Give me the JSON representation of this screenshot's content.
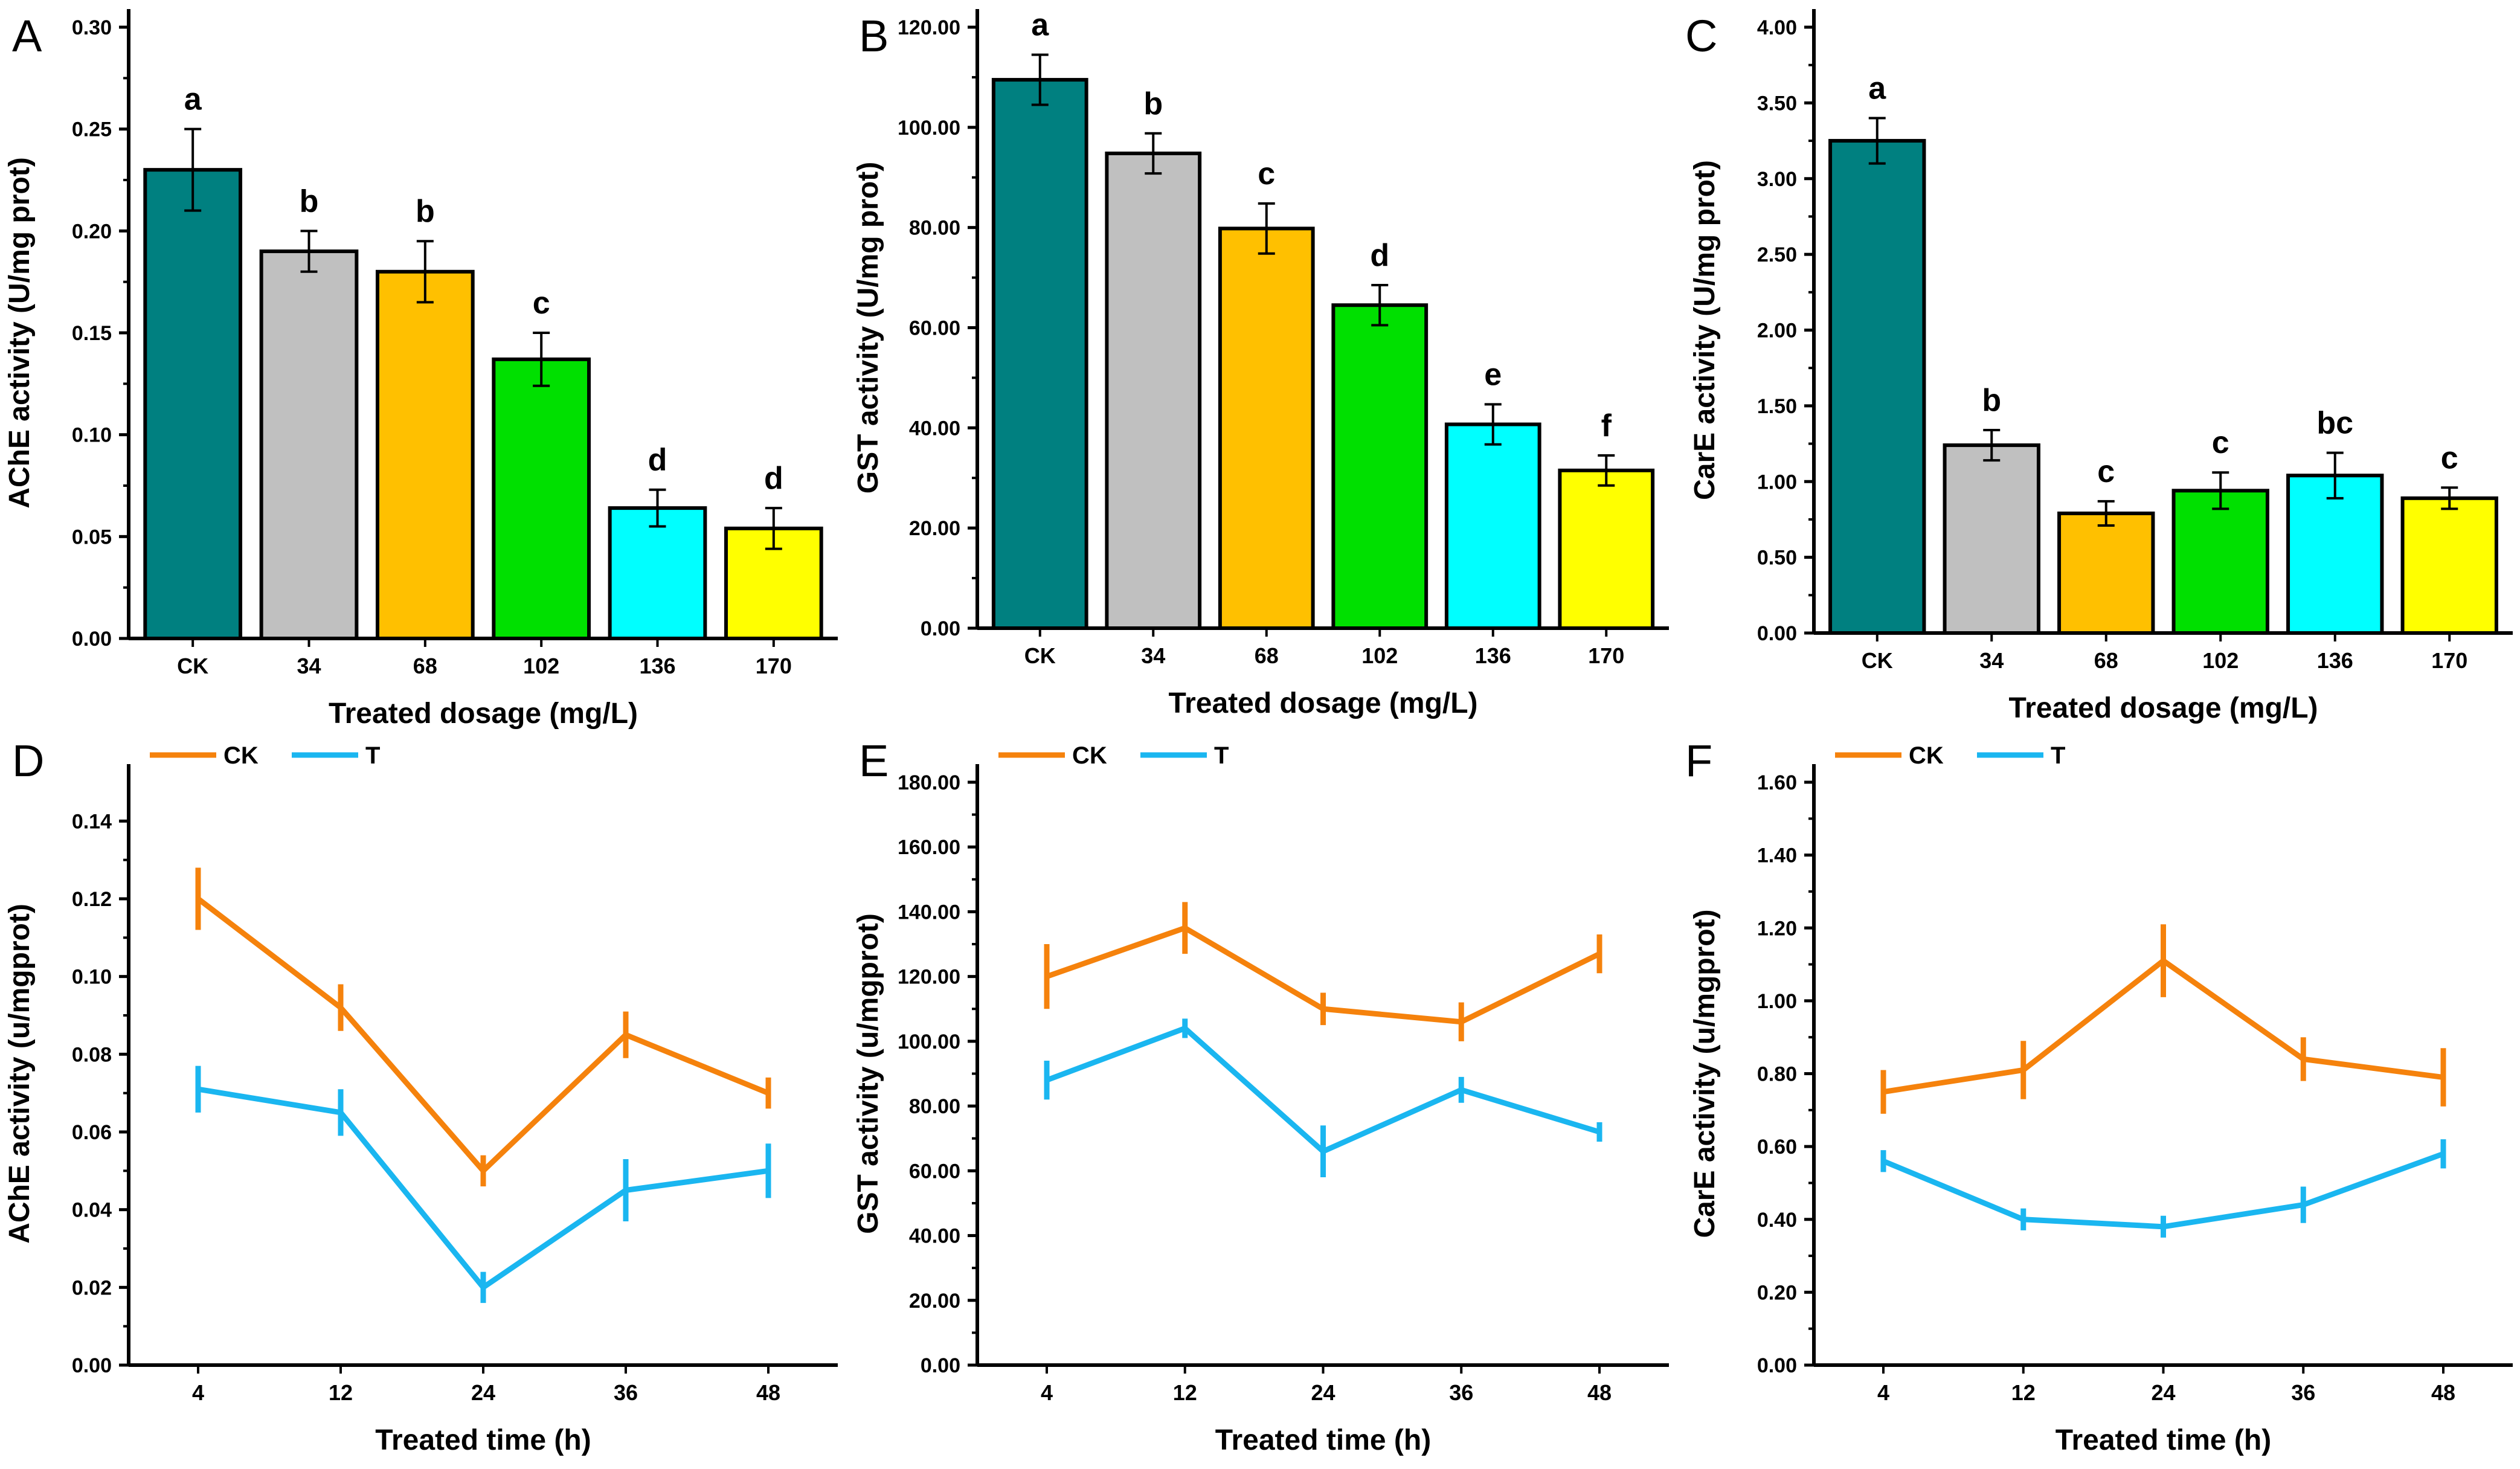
{
  "colors": {
    "bars": [
      "#008080",
      "#c0c0c0",
      "#ffc000",
      "#00e000",
      "#00ffff",
      "#ffff00"
    ],
    "ck_line": "#f5820c",
    "t_line": "#1ab6f0",
    "axis": "#000000"
  },
  "chart_data": [
    {
      "panel": "A",
      "type": "bar",
      "xlabel": "Treated dosage (mg/L)",
      "ylabel": "AChE activity (U/mg prot)",
      "categories": [
        "CK",
        "34",
        "68",
        "102",
        "136",
        "170"
      ],
      "values": [
        0.23,
        0.19,
        0.18,
        0.137,
        0.064,
        0.054
      ],
      "errors": [
        0.02,
        0.01,
        0.015,
        0.013,
        0.009,
        0.01
      ],
      "significance": [
        "a",
        "b",
        "b",
        "c",
        "d",
        "d"
      ],
      "ylim": [
        0,
        0.3
      ],
      "yticks": [
        "0.00",
        "0.05",
        "0.10",
        "0.15",
        "0.20",
        "0.25",
        "0.30"
      ]
    },
    {
      "panel": "B",
      "type": "bar",
      "xlabel": "Treated dosage (mg/L)",
      "ylabel": "GST activity (U/mg prot)",
      "categories": [
        "CK",
        "34",
        "68",
        "102",
        "136",
        "170"
      ],
      "values": [
        109.5,
        94.8,
        79.8,
        64.5,
        40.7,
        31.5
      ],
      "errors": [
        5,
        4,
        5,
        4,
        4,
        3
      ],
      "significance": [
        "a",
        "b",
        "c",
        "d",
        "e",
        "f"
      ],
      "ylim": [
        0,
        120
      ],
      "yticks": [
        "0.00",
        "20.00",
        "40.00",
        "60.00",
        "80.00",
        "100.00",
        "120.00"
      ]
    },
    {
      "panel": "C",
      "type": "bar",
      "xlabel": "Treated dosage (mg/L)",
      "ylabel": "CarE activity (U/mg prot)",
      "categories": [
        "CK",
        "34",
        "68",
        "102",
        "136",
        "170"
      ],
      "values": [
        3.25,
        1.24,
        0.79,
        0.94,
        1.04,
        0.89
      ],
      "errors": [
        0.15,
        0.1,
        0.08,
        0.12,
        0.15,
        0.07
      ],
      "significance": [
        "a",
        "b",
        "c",
        "c",
        "bc",
        "c"
      ],
      "ylim": [
        0,
        4.0
      ],
      "yticks": [
        "0.00",
        "0.50",
        "1.00",
        "1.50",
        "2.00",
        "2.50",
        "3.00",
        "3.50",
        "4.00"
      ]
    },
    {
      "panel": "D",
      "type": "line",
      "xlabel": "Treated time (h)",
      "ylabel": "AChE activity (u/mgprot)",
      "categories": [
        "4",
        "12",
        "24",
        "36",
        "48"
      ],
      "series": [
        {
          "name": "CK",
          "values": [
            0.12,
            0.092,
            0.05,
            0.085,
            0.07
          ],
          "errors": [
            0.008,
            0.006,
            0.004,
            0.006,
            0.004
          ]
        },
        {
          "name": "T",
          "values": [
            0.071,
            0.065,
            0.02,
            0.045,
            0.05
          ],
          "errors": [
            0.006,
            0.006,
            0.004,
            0.008,
            0.007
          ]
        }
      ],
      "ylim": [
        0,
        0.15
      ],
      "yticks": [
        "0.00",
        "0.02",
        "0.04",
        "0.06",
        "0.08",
        "0.10",
        "0.12",
        "0.14"
      ]
    },
    {
      "panel": "E",
      "type": "line",
      "xlabel": "Treated time (h)",
      "ylabel": "GST activity (u/mgprot)",
      "categories": [
        "4",
        "12",
        "24",
        "36",
        "48"
      ],
      "series": [
        {
          "name": "CK",
          "values": [
            120,
            135,
            110,
            106,
            127
          ],
          "errors": [
            10,
            8,
            5,
            6,
            6
          ]
        },
        {
          "name": "T",
          "values": [
            88,
            104,
            66,
            85,
            72
          ],
          "errors": [
            6,
            3,
            8,
            4,
            3
          ]
        }
      ],
      "ylim": [
        0,
        180
      ],
      "yticks": [
        "0.00",
        "20.00",
        "40.00",
        "60.00",
        "80.00",
        "100.00",
        "120.00",
        "140.00",
        "160.00",
        "180.00"
      ]
    },
    {
      "panel": "F",
      "type": "line",
      "xlabel": "Treated time (h)",
      "ylabel": "CarE activity (u/mgprot)",
      "categories": [
        "4",
        "12",
        "24",
        "36",
        "48"
      ],
      "series": [
        {
          "name": "CK",
          "values": [
            0.75,
            0.81,
            1.11,
            0.84,
            0.79
          ],
          "errors": [
            0.06,
            0.08,
            0.1,
            0.06,
            0.08
          ]
        },
        {
          "name": "T",
          "values": [
            0.56,
            0.4,
            0.38,
            0.44,
            0.58
          ],
          "errors": [
            0.03,
            0.03,
            0.03,
            0.05,
            0.04
          ]
        }
      ],
      "ylim": [
        0,
        1.6
      ],
      "yticks": [
        "0.00",
        "0.20",
        "0.40",
        "0.60",
        "0.80",
        "1.00",
        "1.20",
        "1.40",
        "1.60"
      ]
    }
  ]
}
